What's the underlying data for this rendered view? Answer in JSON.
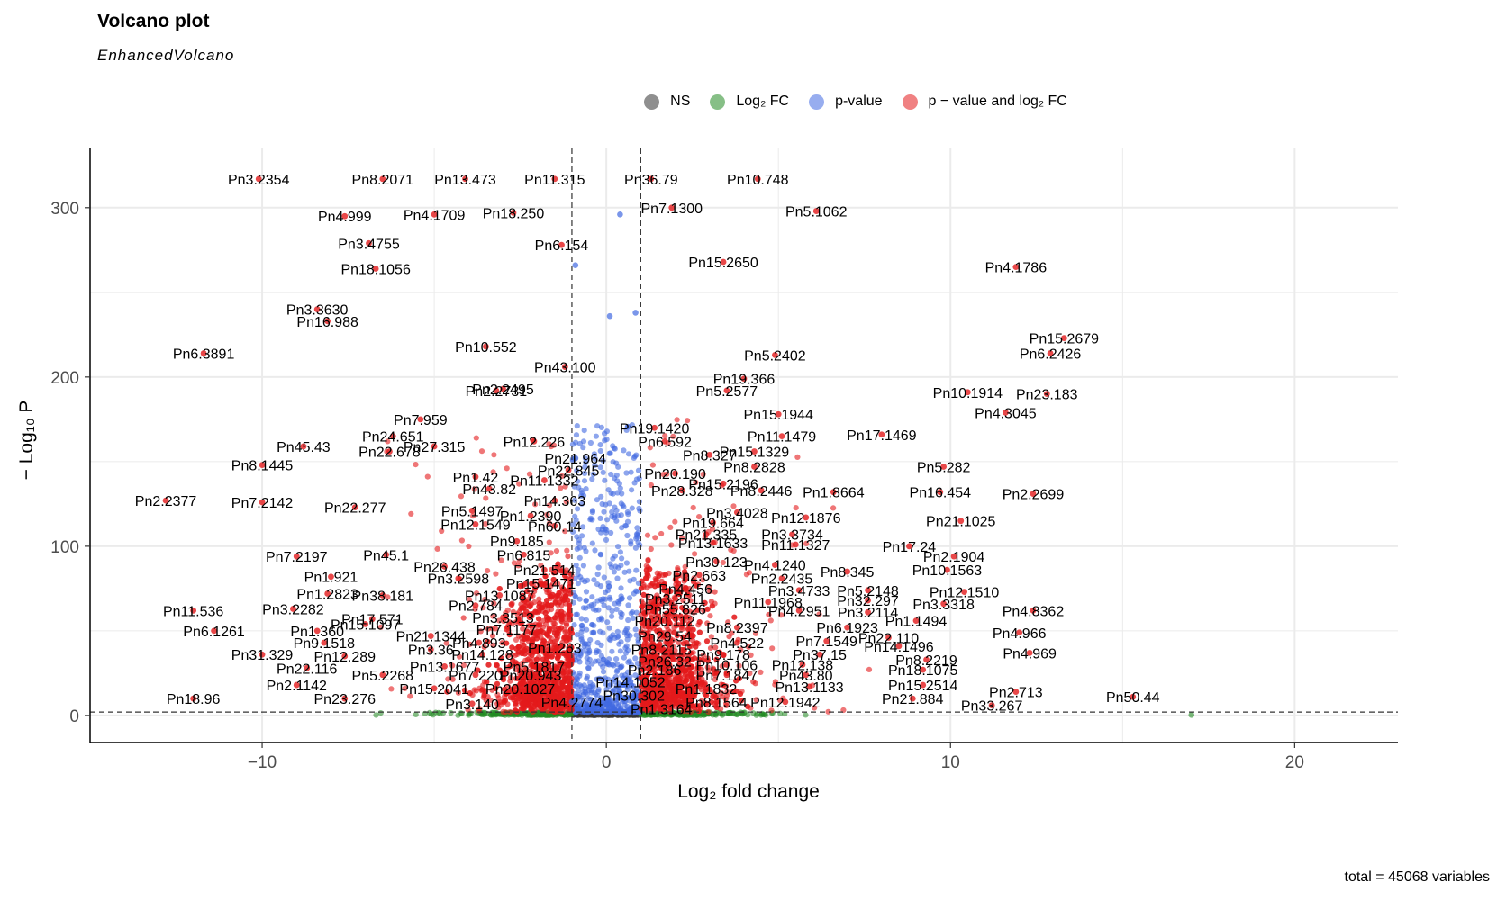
{
  "title": "Volcano plot",
  "subtitle": "EnhancedVolcano",
  "caption": "total = 45068 variables",
  "legend": [
    {
      "label": "NS",
      "color": "#333333"
    },
    {
      "label": "Log₂ FC",
      "color": "#228B22"
    },
    {
      "label": "p-value",
      "color": "#4169E1"
    },
    {
      "label": "p − value and log₂ FC",
      "color": "#E41A1C"
    }
  ],
  "chart_data": {
    "type": "scatter",
    "title": "Volcano plot",
    "subtitle": "EnhancedVolcano",
    "xlabel": "Log₂ fold change",
    "ylabel": "− Log₁₀ P",
    "xlim": [
      -15,
      23
    ],
    "ylim": [
      -16,
      335
    ],
    "x_ticks": [
      -10,
      0,
      10,
      20
    ],
    "y_ticks": [
      0,
      100,
      200,
      300
    ],
    "fc_cutoff": 1,
    "p_cutoff_log10": 2,
    "total_variables": 45068,
    "grid": true,
    "legend_position": "top",
    "labeled_points": [
      {
        "label": "Pn3.2354",
        "x": -10.1,
        "y": 317
      },
      {
        "label": "Pn8.2071",
        "x": -6.5,
        "y": 317
      },
      {
        "label": "Pn13.473",
        "x": -4.1,
        "y": 317
      },
      {
        "label": "Pn11.315",
        "x": -1.5,
        "y": 317
      },
      {
        "label": "Pn36.79",
        "x": 1.3,
        "y": 317
      },
      {
        "label": "Pn10.748",
        "x": 4.4,
        "y": 317
      },
      {
        "label": "Pn4.999",
        "x": -7.6,
        "y": 295
      },
      {
        "label": "Pn4.1709",
        "x": -5.0,
        "y": 296
      },
      {
        "label": "Pn18.250",
        "x": -2.7,
        "y": 297
      },
      {
        "label": "Pn7.1300",
        "x": 1.9,
        "y": 300
      },
      {
        "label": "Pn5.1062",
        "x": 6.1,
        "y": 298
      },
      {
        "label": "Pn3.4755",
        "x": -6.9,
        "y": 279
      },
      {
        "label": "Pn6.154",
        "x": -1.3,
        "y": 278
      },
      {
        "label": "Pn15.2650",
        "x": 3.4,
        "y": 268
      },
      {
        "label": "Pn4.1786",
        "x": 11.9,
        "y": 265
      },
      {
        "label": "Pn18.1056",
        "x": -6.7,
        "y": 264
      },
      {
        "label": "Pn3.3630",
        "x": -8.4,
        "y": 240
      },
      {
        "label": "Pn16.988",
        "x": -8.1,
        "y": 233
      },
      {
        "label": "Pn6.3891",
        "x": -11.7,
        "y": 214
      },
      {
        "label": "Pn10.552",
        "x": -3.5,
        "y": 218
      },
      {
        "label": "Pn5.2402",
        "x": 4.9,
        "y": 213
      },
      {
        "label": "Pn15.2679",
        "x": 13.3,
        "y": 223
      },
      {
        "label": "Pn6.2426",
        "x": 12.9,
        "y": 214
      },
      {
        "label": "Pn43.100",
        "x": -1.2,
        "y": 206
      },
      {
        "label": "Pn19.366",
        "x": 4.0,
        "y": 199
      },
      {
        "label": "Pn2.2495",
        "x": -3.0,
        "y": 193
      },
      {
        "label": "Pn2.2731",
        "x": -3.2,
        "y": 192
      },
      {
        "label": "Pn5.2577",
        "x": 3.5,
        "y": 192
      },
      {
        "label": "Pn10.1914",
        "x": 10.5,
        "y": 191
      },
      {
        "label": "Pn23.183",
        "x": 12.8,
        "y": 190
      },
      {
        "label": "Pn7.959",
        "x": -5.4,
        "y": 175
      },
      {
        "label": "Pn15.1944",
        "x": 5.0,
        "y": 178
      },
      {
        "label": "Pn4.3045",
        "x": 11.6,
        "y": 179
      },
      {
        "label": "Pn19.1420",
        "x": 1.4,
        "y": 170
      },
      {
        "label": "Pn24.651",
        "x": -6.2,
        "y": 165
      },
      {
        "label": "Pn11.1479",
        "x": 5.1,
        "y": 165
      },
      {
        "label": "Pn17.1469",
        "x": 8.0,
        "y": 166
      },
      {
        "label": "Pn12.226",
        "x": -2.1,
        "y": 162
      },
      {
        "label": "Pn45.43",
        "x": -8.8,
        "y": 159
      },
      {
        "label": "Pn27.315",
        "x": -5.0,
        "y": 159
      },
      {
        "label": "Pn6.592",
        "x": 1.7,
        "y": 162
      },
      {
        "label": "Pn15.1329",
        "x": 4.3,
        "y": 156
      },
      {
        "label": "Pn21.964",
        "x": -0.9,
        "y": 152
      },
      {
        "label": "Pn22.678",
        "x": -6.3,
        "y": 156
      },
      {
        "label": "Pn8.327",
        "x": 3.0,
        "y": 154
      },
      {
        "label": "Pn8.1445",
        "x": -10.0,
        "y": 148
      },
      {
        "label": "Pn8.2828",
        "x": 4.3,
        "y": 147
      },
      {
        "label": "Pn5.282",
        "x": 9.8,
        "y": 147
      },
      {
        "label": "Pn22.845",
        "x": -1.1,
        "y": 145
      },
      {
        "label": "Pn1.42",
        "x": -3.8,
        "y": 141
      },
      {
        "label": "Pn20.190",
        "x": 2.0,
        "y": 143
      },
      {
        "label": "Pn11.1332",
        "x": -1.8,
        "y": 139
      },
      {
        "label": "Pn15.2196",
        "x": 3.4,
        "y": 137
      },
      {
        "label": "Pn2.2699",
        "x": 12.4,
        "y": 131
      },
      {
        "label": "Pn43.82",
        "x": -3.4,
        "y": 134
      },
      {
        "label": "Pn28.328",
        "x": 2.2,
        "y": 133
      },
      {
        "label": "Pn8.2446",
        "x": 4.5,
        "y": 133
      },
      {
        "label": "Pn1.8664",
        "x": 6.6,
        "y": 132
      },
      {
        "label": "Pn16.454",
        "x": 9.7,
        "y": 132
      },
      {
        "label": "Pn2.2377",
        "x": -12.8,
        "y": 127
      },
      {
        "label": "Pn7.2142",
        "x": -10.0,
        "y": 126
      },
      {
        "label": "Pn14.363",
        "x": -1.5,
        "y": 127
      },
      {
        "label": "Pn22.277",
        "x": -7.3,
        "y": 123
      },
      {
        "label": "Pn5.1497",
        "x": -3.9,
        "y": 121
      },
      {
        "label": "Pn3.4028",
        "x": 3.8,
        "y": 120
      },
      {
        "label": "Pn1.2390",
        "x": -2.2,
        "y": 118
      },
      {
        "label": "Pn12.1876",
        "x": 5.8,
        "y": 117
      },
      {
        "label": "Pn21.1025",
        "x": 10.3,
        "y": 115
      },
      {
        "label": "Pn19.664",
        "x": 3.1,
        "y": 114
      },
      {
        "label": "Pn12.1549",
        "x": -3.8,
        "y": 113
      },
      {
        "label": "Pn60.14",
        "x": -1.5,
        "y": 112
      },
      {
        "label": "Pn21.335",
        "x": 2.9,
        "y": 107
      },
      {
        "label": "Pn3.3734",
        "x": 5.4,
        "y": 107
      },
      {
        "label": "Pn9.185",
        "x": -2.6,
        "y": 103
      },
      {
        "label": "Pn13.1633",
        "x": 3.1,
        "y": 102
      },
      {
        "label": "Pn11.1327",
        "x": 5.5,
        "y": 101
      },
      {
        "label": "Pn17.24",
        "x": 8.8,
        "y": 100
      },
      {
        "label": "Pn45.1",
        "x": -6.4,
        "y": 95
      },
      {
        "label": "Pn6.815",
        "x": -2.4,
        "y": 95
      },
      {
        "label": "Pn2.1904",
        "x": 10.1,
        "y": 94
      },
      {
        "label": "Pn7.2197",
        "x": -9.0,
        "y": 94
      },
      {
        "label": "Pn30.123",
        "x": 3.2,
        "y": 91
      },
      {
        "label": "Pn4.1240",
        "x": 4.9,
        "y": 89
      },
      {
        "label": "Pn26.438",
        "x": -4.7,
        "y": 88
      },
      {
        "label": "Pn21.514",
        "x": -1.8,
        "y": 86
      },
      {
        "label": "Pn8.345",
        "x": 7.0,
        "y": 85
      },
      {
        "label": "Pn10.1563",
        "x": 9.9,
        "y": 86
      },
      {
        "label": "Pn1.921",
        "x": -8.0,
        "y": 82
      },
      {
        "label": "Pn2.663",
        "x": 2.7,
        "y": 83
      },
      {
        "label": "Pn2.2435",
        "x": 5.1,
        "y": 81
      },
      {
        "label": "Pn3.2598",
        "x": -4.3,
        "y": 81
      },
      {
        "label": "Pn15.1471",
        "x": -1.9,
        "y": 78
      },
      {
        "label": "Pn4.456",
        "x": 2.3,
        "y": 75
      },
      {
        "label": "Pn3.4733",
        "x": 5.6,
        "y": 74
      },
      {
        "label": "Pn5.2148",
        "x": 7.6,
        "y": 74
      },
      {
        "label": "Pn12.1510",
        "x": 10.4,
        "y": 73
      },
      {
        "label": "Pn1.2823",
        "x": -8.1,
        "y": 72
      },
      {
        "label": "Pn38.181",
        "x": -6.5,
        "y": 71
      },
      {
        "label": "Pn13.1087",
        "x": -3.1,
        "y": 71
      },
      {
        "label": "Pn3.2511",
        "x": 2.0,
        "y": 69
      },
      {
        "label": "Pn11.1968",
        "x": 4.7,
        "y": 67
      },
      {
        "label": "Pn32.297",
        "x": 7.6,
        "y": 68
      },
      {
        "label": "Pn3.3318",
        "x": 9.8,
        "y": 66
      },
      {
        "label": "Pn2.784",
        "x": -3.8,
        "y": 65
      },
      {
        "label": "Pn55.826",
        "x": 2.0,
        "y": 63
      },
      {
        "label": "Pn3.2282",
        "x": -9.1,
        "y": 63
      },
      {
        "label": "Pn4.2951",
        "x": 5.6,
        "y": 62
      },
      {
        "label": "Pn3.2114",
        "x": 7.6,
        "y": 61
      },
      {
        "label": "Pn4.8362",
        "x": 12.4,
        "y": 62
      },
      {
        "label": "Pn11.536",
        "x": -12.0,
        "y": 62
      },
      {
        "label": "Pn17.571",
        "x": -6.8,
        "y": 57
      },
      {
        "label": "Pn3.3513",
        "x": -3.0,
        "y": 58
      },
      {
        "label": "Pn20.112",
        "x": 1.7,
        "y": 56
      },
      {
        "label": "Pn1.1494",
        "x": 9.0,
        "y": 56
      },
      {
        "label": "Pn15.1097",
        "x": -7.0,
        "y": 54
      },
      {
        "label": "Pn7.1177",
        "x": -2.9,
        "y": 51
      },
      {
        "label": "Pn8.2397",
        "x": 3.8,
        "y": 52
      },
      {
        "label": "Pn6.1923",
        "x": 7.0,
        "y": 52
      },
      {
        "label": "Pn1.360",
        "x": -8.4,
        "y": 50
      },
      {
        "label": "Pn6.1261",
        "x": -11.4,
        "y": 50
      },
      {
        "label": "Pn29.54",
        "x": 1.7,
        "y": 47
      },
      {
        "label": "Pn21.1344",
        "x": -5.1,
        "y": 47
      },
      {
        "label": "Pn22.110",
        "x": 8.2,
        "y": 46
      },
      {
        "label": "Pn4.966",
        "x": 12.0,
        "y": 49
      },
      {
        "label": "Pn9.1518",
        "x": -8.2,
        "y": 43
      },
      {
        "label": "Pn4.893",
        "x": -3.7,
        "y": 43
      },
      {
        "label": "Pn4.522",
        "x": 3.8,
        "y": 43
      },
      {
        "label": "Pn7.1549",
        "x": 6.4,
        "y": 44
      },
      {
        "label": "Pn14.1496",
        "x": 8.5,
        "y": 41
      },
      {
        "label": "Pn3.36",
        "x": -5.1,
        "y": 39
      },
      {
        "label": "Pn1.263",
        "x": -1.5,
        "y": 40
      },
      {
        "label": "Pn8.2115",
        "x": 1.6,
        "y": 39
      },
      {
        "label": "Pn4.969",
        "x": 12.3,
        "y": 37
      },
      {
        "label": "Pn31.329",
        "x": -10.0,
        "y": 36
      },
      {
        "label": "Pn12.289",
        "x": -7.6,
        "y": 35
      },
      {
        "label": "Pn14.128",
        "x": -3.6,
        "y": 36
      },
      {
        "label": "Pn9.178",
        "x": 3.4,
        "y": 36
      },
      {
        "label": "Pn37.15",
        "x": 6.2,
        "y": 36
      },
      {
        "label": "Pn8.2219",
        "x": 9.3,
        "y": 33
      },
      {
        "label": "Pn26.32",
        "x": 1.7,
        "y": 32
      },
      {
        "label": "Pn13.1677",
        "x": -4.7,
        "y": 29
      },
      {
        "label": "Pn5.1817",
        "x": -2.1,
        "y": 29
      },
      {
        "label": "Pn10.106",
        "x": 3.5,
        "y": 30
      },
      {
        "label": "Pn12.138",
        "x": 5.7,
        "y": 30
      },
      {
        "label": "Pn22.116",
        "x": -8.7,
        "y": 28
      },
      {
        "label": "Pn2.186",
        "x": 1.4,
        "y": 27
      },
      {
        "label": "Pn18.1075",
        "x": 9.2,
        "y": 27
      },
      {
        "label": "Pn5.2268",
        "x": -6.5,
        "y": 24
      },
      {
        "label": "Pn7.220",
        "x": -3.8,
        "y": 24
      },
      {
        "label": "Pn20.943",
        "x": -2.2,
        "y": 24
      },
      {
        "label": "Pn7.1847",
        "x": 3.5,
        "y": 24
      },
      {
        "label": "Pn43.80",
        "x": 5.8,
        "y": 24
      },
      {
        "label": "Pn14.1052",
        "x": 0.7,
        "y": 20
      },
      {
        "label": "Pn2.1142",
        "x": -9.0,
        "y": 18
      },
      {
        "label": "Pn15.2041",
        "x": -5.0,
        "y": 16
      },
      {
        "label": "Pn20.1027",
        "x": -2.5,
        "y": 16
      },
      {
        "label": "Pn1.1832",
        "x": 2.9,
        "y": 16
      },
      {
        "label": "Pn13.1133",
        "x": 5.9,
        "y": 17
      },
      {
        "label": "Pn15.2514",
        "x": 9.2,
        "y": 18
      },
      {
        "label": "Pn2.713",
        "x": 11.9,
        "y": 14
      },
      {
        "label": "Pn30.302",
        "x": 0.8,
        "y": 12
      },
      {
        "label": "Pn18.96",
        "x": -12.0,
        "y": 10
      },
      {
        "label": "Pn23.276",
        "x": -7.6,
        "y": 10
      },
      {
        "label": "Pn50.44",
        "x": 15.3,
        "y": 11
      },
      {
        "label": "Pn21.884",
        "x": 8.9,
        "y": 10
      },
      {
        "label": "Pn3.140",
        "x": -3.9,
        "y": 7
      },
      {
        "label": "Pn4.2774",
        "x": -1.0,
        "y": 8
      },
      {
        "label": "Pn8.1564",
        "x": 3.2,
        "y": 8
      },
      {
        "label": "Pn12.1942",
        "x": 5.2,
        "y": 8
      },
      {
        "label": "Pn33.267",
        "x": 11.2,
        "y": 6
      },
      {
        "label": "Pn1.3164",
        "x": 1.6,
        "y": 4
      }
    ]
  }
}
